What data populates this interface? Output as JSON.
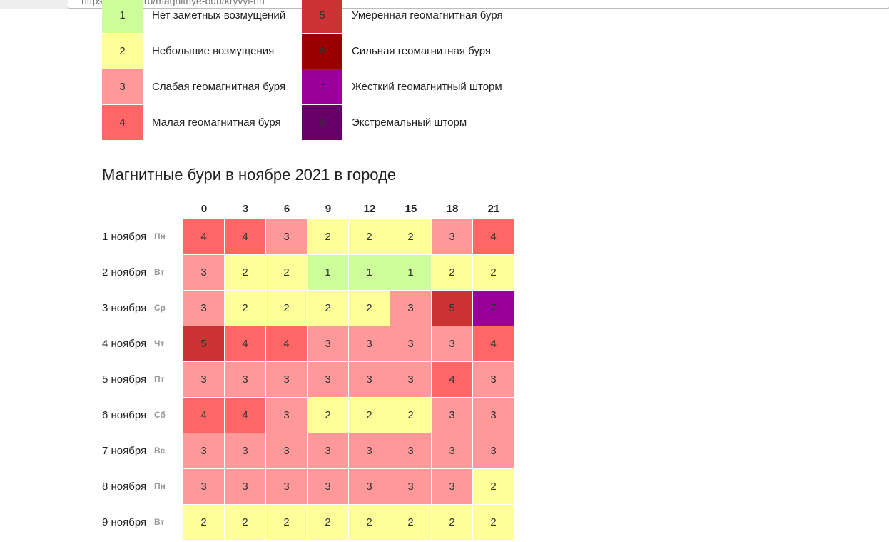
{
  "browser": {
    "url": "https://time-in.ru/magnitnye-buri/kryvyi-rih"
  },
  "legend": [
    {
      "level": 1,
      "label": "Нет заметных возмущений",
      "color": "#ccff99"
    },
    {
      "level": 2,
      "label": "Небольшие возмущения",
      "color": "#ffff99"
    },
    {
      "level": 3,
      "label": "Слабая геомагнитная буря",
      "color": "#ff9999"
    },
    {
      "level": 4,
      "label": "Малая геомагнитная буря",
      "color": "#ff6666"
    },
    {
      "level": 5,
      "label": "Умеренная геомагнитная буря",
      "color": "#cc3333"
    },
    {
      "level": 6,
      "label": "Сильная геомагнитная буря",
      "color": "#990000"
    },
    {
      "level": 7,
      "label": "Жесткий геомагнитный шторм",
      "color": "#990099"
    },
    {
      "level": 8,
      "label": "Экстремальный шторм",
      "color": "#660066"
    }
  ],
  "table": {
    "title": "Магнитные бури в ноябре 2021 в городе",
    "hours": [
      0,
      3,
      6,
      9,
      12,
      15,
      18,
      21
    ],
    "rows": [
      {
        "date": "1 ноября",
        "weekday": "Пн",
        "values": [
          4,
          4,
          3,
          2,
          2,
          2,
          3,
          4
        ]
      },
      {
        "date": "2 ноября",
        "weekday": "Вт",
        "values": [
          3,
          2,
          2,
          1,
          1,
          1,
          2,
          2
        ]
      },
      {
        "date": "3 ноября",
        "weekday": "Ср",
        "values": [
          3,
          2,
          2,
          2,
          2,
          3,
          5,
          7
        ]
      },
      {
        "date": "4 ноября",
        "weekday": "Чт",
        "values": [
          5,
          4,
          4,
          3,
          3,
          3,
          3,
          4
        ]
      },
      {
        "date": "5 ноября",
        "weekday": "Пт",
        "values": [
          3,
          3,
          3,
          3,
          3,
          3,
          4,
          3
        ]
      },
      {
        "date": "6 ноября",
        "weekday": "Сб",
        "values": [
          4,
          4,
          3,
          2,
          2,
          2,
          3,
          3
        ]
      },
      {
        "date": "7 ноября",
        "weekday": "Вс",
        "values": [
          3,
          3,
          3,
          3,
          3,
          3,
          3,
          3
        ]
      },
      {
        "date": "8 ноября",
        "weekday": "Пн",
        "values": [
          3,
          3,
          3,
          3,
          3,
          3,
          3,
          2
        ]
      },
      {
        "date": "9 ноября",
        "weekday": "Вт",
        "values": [
          2,
          2,
          2,
          2,
          2,
          2,
          2,
          2
        ]
      }
    ]
  }
}
